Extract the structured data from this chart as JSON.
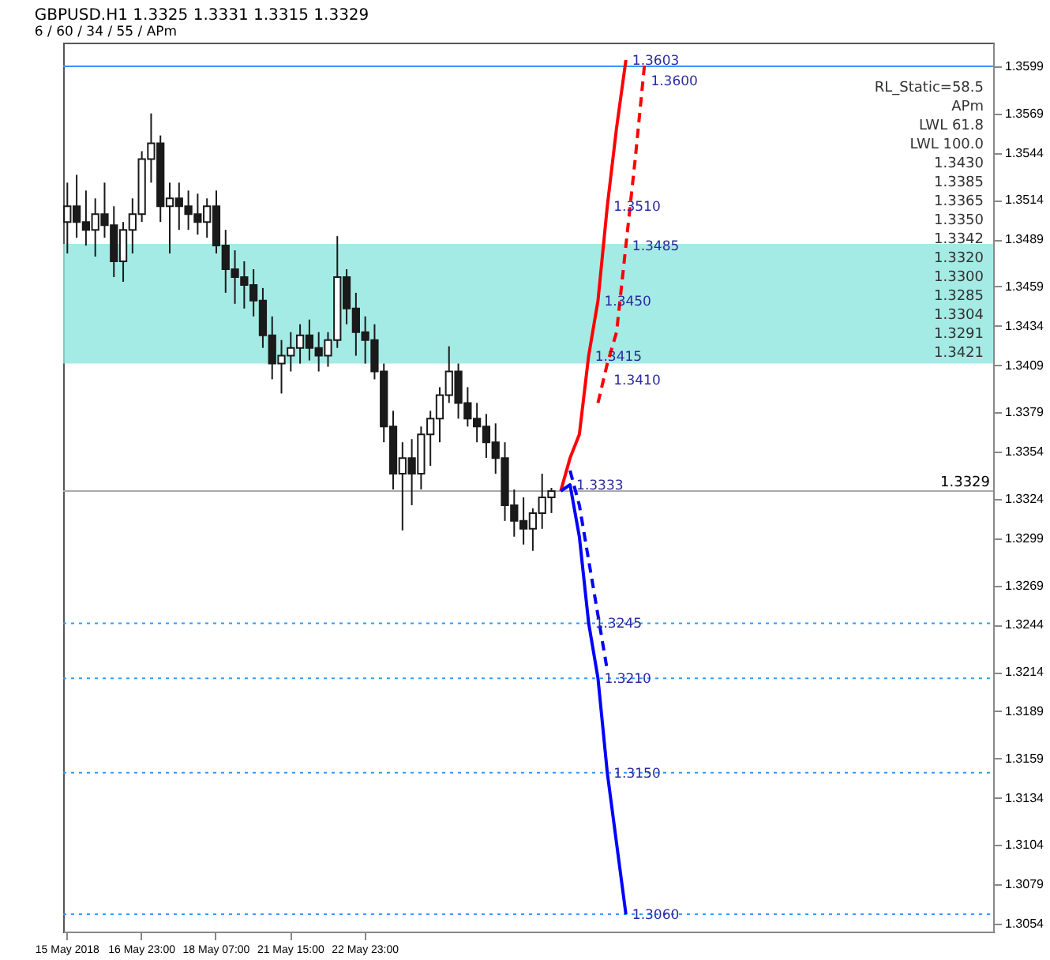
{
  "chart_data": {
    "type": "candlestick",
    "title": "GBPUSD.H1  1.3325 1.3331 1.3315 1.3329",
    "subtitle": "6 / 60 / 34 / 55 / APm",
    "annotations": [
      "RL_Static=58.5",
      "APm",
      "LWL 61.8",
      "LWL 100.0",
      "1.3430",
      "1.3385",
      "1.3365",
      "1.3350",
      "1.3342",
      "1.3320",
      "1.3300",
      "1.3285",
      "1.3304",
      "1.3291",
      "1.3421",
      {
        "text": "1.3603",
        "y": 1.3603
      },
      {
        "text": "1.3600",
        "y": 1.36
      },
      {
        "text": "1.3510",
        "y": 1.351
      },
      {
        "text": "1.3485",
        "y": 1.3485
      },
      {
        "text": "1.3450",
        "y": 1.345
      },
      {
        "text": "1.3415",
        "y": 1.3415
      },
      {
        "text": "1.3410",
        "y": 1.341
      },
      {
        "text": "1.3333",
        "y": 1.3333
      },
      {
        "text": "1.3245",
        "y": 1.3245
      },
      {
        "text": "1.3210",
        "y": 1.321
      },
      {
        "text": "1.3150",
        "y": 1.315
      },
      {
        "text": "1.3060",
        "y": 1.306
      }
    ],
    "color": "#1a1a1a",
    "categories": [
      "15 May 2018",
      null,
      null,
      null,
      null,
      null,
      null,
      null,
      "16 May 23:00",
      null,
      null,
      null,
      null,
      null,
      null,
      null,
      "18 May 07:00",
      null,
      null,
      null,
      null,
      null,
      null,
      null,
      "21 May 15:00",
      null,
      null,
      null,
      null,
      null,
      null,
      null,
      "22 May 23:00",
      null,
      null,
      null,
      null,
      null,
      null,
      null,
      null,
      null,
      null,
      null,
      null,
      null,
      null,
      null,
      null,
      null,
      null,
      null,
      null,
      null,
      null,
      null,
      null,
      null,
      null,
      null,
      null,
      null,
      null,
      null,
      null,
      null,
      null,
      null,
      null,
      null,
      null,
      null,
      null,
      null,
      null,
      null,
      null,
      null,
      null,
      null,
      null,
      null,
      null,
      null,
      null,
      null,
      null,
      null,
      null,
      null,
      null,
      null,
      null,
      null,
      null,
      null,
      null,
      null,
      null,
      null
    ],
    "ohlc": [
      [
        1.35,
        1.3525,
        1.348,
        1.351
      ],
      [
        1.351,
        1.353,
        1.349,
        1.35
      ],
      [
        1.35,
        1.352,
        1.3485,
        1.3495
      ],
      [
        1.3495,
        1.3515,
        1.3478,
        1.3505
      ],
      [
        1.3505,
        1.3525,
        1.349,
        1.3498
      ],
      [
        1.3498,
        1.351,
        1.3465,
        1.3475
      ],
      [
        1.3475,
        1.35,
        1.3462,
        1.3495
      ],
      [
        1.3495,
        1.3515,
        1.348,
        1.3505
      ],
      [
        1.3505,
        1.3545,
        1.35,
        1.354
      ],
      [
        1.354,
        1.3569,
        1.3525,
        1.355
      ],
      [
        1.355,
        1.3555,
        1.35,
        1.351
      ],
      [
        1.351,
        1.3525,
        1.348,
        1.3515
      ],
      [
        1.3515,
        1.3525,
        1.3495,
        1.351
      ],
      [
        1.351,
        1.352,
        1.3495,
        1.3505
      ],
      [
        1.3505,
        1.3518,
        1.3492,
        1.35
      ],
      [
        1.35,
        1.3515,
        1.349,
        1.351
      ],
      [
        1.351,
        1.352,
        1.348,
        1.3485
      ],
      [
        1.3485,
        1.3495,
        1.3455,
        1.347
      ],
      [
        1.347,
        1.3482,
        1.3448,
        1.3465
      ],
      [
        1.3465,
        1.3475,
        1.3445,
        1.346
      ],
      [
        1.346,
        1.347,
        1.344,
        1.345
      ],
      [
        1.345,
        1.3458,
        1.342,
        1.3428
      ],
      [
        1.3428,
        1.344,
        1.34,
        1.341
      ],
      [
        1.341,
        1.3425,
        1.3391,
        1.3415
      ],
      [
        1.3415,
        1.343,
        1.3405,
        1.342
      ],
      [
        1.342,
        1.3435,
        1.341,
        1.3428
      ],
      [
        1.3428,
        1.3438,
        1.3412,
        1.342
      ],
      [
        1.342,
        1.343,
        1.3405,
        1.3415
      ],
      [
        1.3415,
        1.343,
        1.3408,
        1.3425
      ],
      [
        1.3425,
        1.3491,
        1.342,
        1.3465
      ],
      [
        1.3465,
        1.347,
        1.3435,
        1.3445
      ],
      [
        1.3445,
        1.3455,
        1.3415,
        1.343
      ],
      [
        1.343,
        1.344,
        1.341,
        1.3425
      ],
      [
        1.3425,
        1.3435,
        1.34,
        1.3405
      ],
      [
        1.3405,
        1.341,
        1.336,
        1.337
      ],
      [
        1.337,
        1.338,
        1.333,
        1.334
      ],
      [
        1.334,
        1.336,
        1.3304,
        1.335
      ],
      [
        1.335,
        1.3362,
        1.332,
        1.334
      ],
      [
        1.334,
        1.337,
        1.333,
        1.3365
      ],
      [
        1.3365,
        1.338,
        1.3345,
        1.3375
      ],
      [
        1.3375,
        1.3395,
        1.336,
        1.339
      ],
      [
        1.339,
        1.3421,
        1.3385,
        1.3405
      ],
      [
        1.3405,
        1.341,
        1.3375,
        1.3385
      ],
      [
        1.3385,
        1.3395,
        1.337,
        1.3375
      ],
      [
        1.3375,
        1.3385,
        1.336,
        1.337
      ],
      [
        1.337,
        1.3378,
        1.335,
        1.336
      ],
      [
        1.336,
        1.3372,
        1.334,
        1.335
      ],
      [
        1.335,
        1.336,
        1.331,
        1.332
      ],
      [
        1.332,
        1.333,
        1.33,
        1.331
      ],
      [
        1.331,
        1.3325,
        1.3295,
        1.3305
      ],
      [
        1.3305,
        1.3318,
        1.3291,
        1.3315
      ],
      [
        1.3315,
        1.334,
        1.3305,
        1.3325
      ],
      [
        1.3325,
        1.3331,
        1.3315,
        1.3329
      ],
      null,
      null,
      null,
      null,
      null,
      null,
      null,
      null,
      null,
      null,
      null,
      null,
      null,
      null,
      null,
      null,
      null,
      null,
      null,
      null,
      null,
      null,
      null,
      null,
      null,
      null,
      null,
      null,
      null,
      null,
      null,
      null,
      null,
      null,
      null,
      null,
      null,
      null,
      null,
      null,
      null,
      null,
      null,
      null,
      null,
      null,
      null
    ],
    "series": [
      {
        "type": "line",
        "color": "#ff0000",
        "line_style": "solid",
        "values": [
          null,
          null,
          null,
          null,
          null,
          null,
          null,
          null,
          null,
          null,
          null,
          null,
          null,
          null,
          null,
          null,
          null,
          null,
          null,
          null,
          null,
          null,
          null,
          null,
          null,
          null,
          null,
          null,
          null,
          null,
          null,
          null,
          null,
          null,
          null,
          null,
          null,
          null,
          null,
          null,
          null,
          null,
          null,
          null,
          null,
          null,
          null,
          null,
          null,
          null,
          null,
          null,
          null,
          1.3329,
          1.335,
          1.3365,
          1.3415,
          1.345,
          1.351,
          1.356,
          1.3603,
          null,
          null,
          null,
          null,
          null,
          null,
          null,
          null,
          null,
          null,
          null,
          null,
          null,
          null,
          null,
          null,
          null,
          null,
          null,
          null,
          null,
          null,
          null,
          null,
          null,
          null,
          null,
          null,
          null,
          null,
          null,
          null,
          null,
          null,
          null,
          null,
          null,
          null,
          null
        ]
      },
      {
        "type": "line",
        "color": "#ff0000",
        "line_style": "dashed",
        "values": [
          null,
          null,
          null,
          null,
          null,
          null,
          null,
          null,
          null,
          null,
          null,
          null,
          null,
          null,
          null,
          null,
          null,
          null,
          null,
          null,
          null,
          null,
          null,
          null,
          null,
          null,
          null,
          null,
          null,
          null,
          null,
          null,
          null,
          null,
          null,
          null,
          null,
          null,
          null,
          null,
          null,
          null,
          null,
          null,
          null,
          null,
          null,
          null,
          null,
          null,
          null,
          null,
          null,
          null,
          null,
          null,
          null,
          1.3385,
          1.341,
          1.343,
          1.3485,
          1.354,
          1.36,
          null,
          null,
          null,
          null,
          null,
          null,
          null,
          null,
          null,
          null,
          null,
          null,
          null,
          null,
          null,
          null,
          null,
          null,
          null,
          null,
          null,
          null,
          null,
          null,
          null,
          null,
          null,
          null,
          null,
          null,
          null,
          null,
          null,
          null,
          null,
          null,
          null
        ]
      },
      {
        "type": "line",
        "color": "#0000ff",
        "line_style": "solid",
        "values": [
          null,
          null,
          null,
          null,
          null,
          null,
          null,
          null,
          null,
          null,
          null,
          null,
          null,
          null,
          null,
          null,
          null,
          null,
          null,
          null,
          null,
          null,
          null,
          null,
          null,
          null,
          null,
          null,
          null,
          null,
          null,
          null,
          null,
          null,
          null,
          null,
          null,
          null,
          null,
          null,
          null,
          null,
          null,
          null,
          null,
          null,
          null,
          null,
          null,
          null,
          null,
          null,
          null,
          1.3329,
          1.3333,
          1.33,
          1.3245,
          1.321,
          1.315,
          1.3105,
          1.306,
          null,
          null,
          null,
          null,
          null,
          null,
          null,
          null,
          null,
          null,
          null,
          null,
          null,
          null,
          null,
          null,
          null,
          null,
          null,
          null,
          null,
          null,
          null,
          null,
          null,
          null,
          null,
          null,
          null,
          null,
          null,
          null,
          null,
          null,
          null,
          null,
          null,
          null,
          null
        ]
      },
      {
        "type": "line",
        "color": "#0000ff",
        "line_style": "dashed",
        "values": [
          null,
          null,
          null,
          null,
          null,
          null,
          null,
          null,
          null,
          null,
          null,
          null,
          null,
          null,
          null,
          null,
          null,
          null,
          null,
          null,
          null,
          null,
          null,
          null,
          null,
          null,
          null,
          null,
          null,
          null,
          null,
          null,
          null,
          null,
          null,
          null,
          null,
          null,
          null,
          null,
          null,
          null,
          null,
          null,
          null,
          null,
          null,
          null,
          null,
          null,
          null,
          null,
          null,
          null,
          1.3342,
          1.332,
          1.3285,
          1.325,
          1.3215,
          null,
          null,
          null,
          null,
          null,
          null,
          null,
          null,
          null,
          null,
          null,
          null,
          null,
          null,
          null,
          null,
          null,
          null,
          null,
          null,
          null,
          null,
          null,
          null,
          null,
          null,
          null,
          null,
          null,
          null,
          null,
          null,
          null,
          null,
          null,
          null,
          null,
          null,
          null,
          null,
          null
        ]
      }
    ],
    "ylim": [
      1.3049,
      1.3614
    ],
    "yticks": [
      1.3054,
      1.3079,
      1.3104,
      1.3134,
      1.3159,
      1.3189,
      1.3214,
      1.3244,
      1.3269,
      1.3299,
      1.3324,
      1.3354,
      1.3379,
      1.3409,
      1.3434,
      1.3459,
      1.3489,
      1.3514,
      1.3544,
      1.3569,
      1.3599
    ],
    "ref_lines": [
      {
        "axis": "y",
        "value": 1.3599,
        "color": "#3399ff",
        "line_style": "solid"
      },
      {
        "axis": "y",
        "value": 1.3329,
        "label": "1.3329",
        "color": "#aaaaaa",
        "line_style": "solid"
      },
      {
        "axis": "y",
        "value": 1.3245,
        "color": "#3399ff",
        "line_style": "dotted"
      },
      {
        "axis": "y",
        "value": 1.321,
        "color": "#3399ff",
        "line_style": "dotted"
      },
      {
        "axis": "y",
        "value": 1.315,
        "color": "#3399ff",
        "line_style": "dotted"
      },
      {
        "axis": "y",
        "value": 1.306,
        "color": "#3399ff",
        "line_style": "dotted"
      }
    ],
    "bands": [
      {
        "axis": "y",
        "from": 1.341,
        "to": 1.3486,
        "color": "#8fe6df"
      }
    ]
  }
}
